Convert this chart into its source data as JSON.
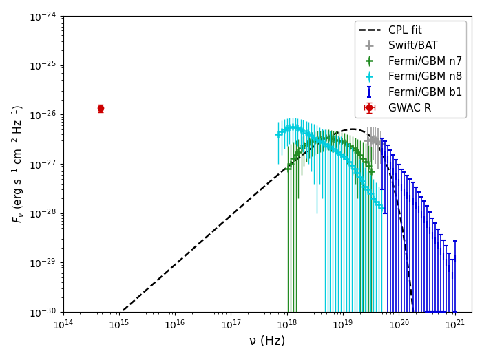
{
  "xlabel": "ν (Hz)",
  "ylabel": "$F_{\\nu}$ (erg s$^{-1}$ cm$^{-2}$ Hz$^{-1}$)",
  "xlim_log": [
    14.0,
    21.3
  ],
  "ylim_log": [
    -30.0,
    -24.0
  ],
  "cpl_fit": {
    "nu_peak": 7e+18,
    "F_peak": 4e-27,
    "alpha": 1.0,
    "Ec": 1.5e+19,
    "nu_start_log": 14.0,
    "nu_end_log": 21.2,
    "color": "#000000",
    "lw": 1.8,
    "linestyle": "--",
    "label": "CPL fit"
  },
  "gwac_r": {
    "nu": 460000000000000.0,
    "F": 1.35e-26,
    "F_err_up": 2.5e-27,
    "F_err_down": 2.5e-27,
    "nu_err": 30000000000000.0,
    "color": "#cc0000",
    "marker": "o",
    "ms": 6,
    "label": "GWAC R"
  },
  "swift_bat": {
    "nu": [
      2.8e+19,
      3.2e+19,
      3.5e+19,
      3.8e+19,
      4.2e+19,
      4.7e+19
    ],
    "F": [
      3e-27,
      3.1e-27,
      3.2e-27,
      3e-27,
      2.8e-27,
      2.5e-27
    ],
    "F_err_up": [
      2.5e-27,
      2.5e-27,
      2.5e-27,
      2.5e-27,
      2.5e-27,
      2e-27
    ],
    "F_err_down": [
      2e-27,
      2e-27,
      2e-27,
      2e-27,
      2e-27,
      1.5e-27
    ],
    "color": "#999999",
    "marker": "+",
    "ms": 8,
    "mew": 2.0,
    "label": "Swift/BAT"
  },
  "fermi_n7": {
    "nu": [
      1.05e+18,
      1.15e+18,
      1.3e+18,
      1.45e+18,
      1.6e+18,
      1.8e+18,
      2e+18,
      2.2e+18,
      2.5e+18,
      2.8e+18,
      3.1e+18,
      3.5e+18,
      3.9e+18,
      4.4e+18,
      4.9e+18,
      5.5e+18,
      6.1e+18,
      6.8e+18,
      7.6e+18,
      8.5e+18,
      9.5e+18,
      1.06e+19,
      1.18e+19,
      1.32e+19,
      1.47e+19,
      1.64e+19,
      1.83e+19,
      2.05e+19,
      2.28e+19,
      2.55e+19,
      2.85e+19,
      3.18e+19
    ],
    "F": [
      8e-28,
      1e-27,
      1.3e-27,
      1.5e-27,
      1.7e-27,
      2.1e-27,
      2.4e-27,
      2.6e-27,
      2.8e-27,
      2.9e-27,
      3e-27,
      3.1e-27,
      3.2e-27,
      3.3e-27,
      3.4e-27,
      3.4e-27,
      3.3e-27,
      3.2e-27,
      3.1e-27,
      3e-27,
      2.9e-27,
      2.7e-27,
      2.5e-27,
      2.3e-27,
      2.1e-27,
      1.9e-27,
      1.7e-27,
      1.5e-27,
      1.3e-27,
      1.1e-27,
      9e-28,
      7e-28
    ],
    "F_err_up": [
      1.5e-27,
      1.5e-27,
      1.5e-27,
      1.5e-27,
      1.5e-27,
      1.5e-27,
      1.5e-27,
      1.5e-27,
      1.5e-27,
      1.5e-27,
      1.5e-27,
      1.5e-27,
      1.5e-27,
      1.5e-27,
      1.5e-27,
      1.5e-27,
      1.5e-27,
      1.5e-27,
      1.5e-27,
      1.5e-27,
      1.5e-27,
      1.5e-27,
      1.5e-27,
      1.5e-27,
      1.5e-27,
      1.5e-27,
      1.5e-27,
      1.5e-27,
      1.5e-27,
      1.5e-27,
      1.5e-27,
      1.5e-27
    ],
    "F_err_down": [
      8e-28,
      1e-27,
      1.3e-27,
      1.5e-27,
      1.5e-27,
      1.5e-27,
      1.5e-27,
      1.5e-27,
      1.5e-27,
      1.5e-27,
      1.5e-27,
      1.5e-27,
      1.5e-27,
      1.5e-27,
      1.5e-27,
      1.5e-27,
      1.5e-27,
      1.5e-27,
      1.5e-27,
      1.5e-27,
      1.5e-27,
      1.5e-27,
      1.5e-27,
      1.5e-27,
      1.5e-27,
      1.5e-27,
      1.5e-27,
      1.5e-27,
      1.5e-27,
      1.5e-27,
      9e-28,
      7e-28
    ],
    "color": "#228B22",
    "marker": "+",
    "ms": 7,
    "mew": 1.8,
    "label": "Fermi/GBM n7"
  },
  "fermi_n8": {
    "nu": [
      7e+17,
      8e+17,
      9e+17,
      1e+18,
      1.1e+18,
      1.25e+18,
      1.4e+18,
      1.55e+18,
      1.75e+18,
      1.95e+18,
      2.2e+18,
      2.45e+18,
      2.75e+18,
      3.05e+18,
      3.4e+18,
      3.8e+18,
      4.25e+18,
      4.75e+18,
      5.3e+18,
      5.9e+18,
      6.6e+18,
      7.4e+18,
      8.2e+18,
      9.2e+18,
      1.03e+19,
      1.15e+19,
      1.28e+19,
      1.43e+19,
      1.6e+19,
      1.78e+19,
      1.99e+19,
      2.22e+19,
      2.48e+19,
      2.77e+19,
      3.1e+19,
      3.46e+19,
      3.86e+19,
      4.31e+19,
      4.82e+19
    ],
    "F": [
      4e-27,
      4.5e-27,
      5e-27,
      5.3e-27,
      5.5e-27,
      5.6e-27,
      5.5e-27,
      5.3e-27,
      5e-27,
      4.7e-27,
      4.3e-27,
      4e-27,
      3.7e-27,
      3.4e-27,
      3.1e-27,
      2.9e-27,
      2.7e-27,
      2.5e-27,
      2.3e-27,
      2.2e-27,
      2e-27,
      1.85e-27,
      1.7e-27,
      1.55e-27,
      1.4e-27,
      1.25e-27,
      1.1e-27,
      9.5e-28,
      8e-28,
      6.5e-28,
      5.5e-28,
      4.5e-28,
      3.5e-28,
      3e-28,
      2.5e-28,
      2e-28,
      1.7e-28,
      1.5e-28,
      1.3e-28
    ],
    "F_err_up": [
      3e-27,
      3e-27,
      3e-27,
      3e-27,
      3e-27,
      3e-27,
      3e-27,
      3e-27,
      3e-27,
      3e-27,
      3e-27,
      3e-27,
      3e-27,
      3e-27,
      3e-27,
      2.5e-27,
      2.5e-27,
      2.5e-27,
      2.5e-27,
      2.5e-27,
      2e-27,
      2e-27,
      2e-27,
      2e-27,
      1.8e-27,
      1.5e-27,
      1.5e-27,
      1.2e-27,
      1e-27,
      8e-28,
      7e-28,
      6e-28,
      5e-28,
      4e-28,
      3.5e-28,
      3e-28,
      2.5e-28,
      2e-28,
      1.8e-28
    ],
    "F_err_down": [
      3e-27,
      3e-27,
      3e-27,
      3e-27,
      3e-27,
      3e-27,
      3e-27,
      3e-27,
      3e-27,
      3e-27,
      3e-27,
      3e-27,
      3e-27,
      3e-27,
      3e-27,
      2.5e-27,
      2.5e-27,
      2.5e-27,
      2.5e-27,
      2.5e-27,
      2e-27,
      2e-27,
      2e-27,
      2e-27,
      1.8e-27,
      1.5e-27,
      1.5e-27,
      1.2e-27,
      1e-27,
      8e-28,
      7e-28,
      6e-28,
      5e-28,
      4e-28,
      3.5e-28,
      3e-28,
      2.5e-28,
      2e-28,
      1.8e-28
    ],
    "color": "#00ccdd",
    "marker": "+",
    "ms": 7,
    "mew": 1.8,
    "label": "Fermi/GBM n8"
  },
  "fermi_b1": {
    "nu": [
      5e+19,
      5.6e+19,
      6.3e+19,
      7e+19,
      7.9e+19,
      8.9e+19,
      1e+20,
      1.12e+20,
      1.26e+20,
      1.41e+20,
      1.58e+20,
      1.78e+20,
      2e+20,
      2.24e+20,
      2.51e+20,
      2.82e+20,
      3.16e+20,
      3.55e+20,
      3.98e+20,
      4.47e+20,
      5.01e+20,
      5.62e+20,
      6.31e+20,
      7.08e+20,
      7.94e+20,
      8.91e+20,
      1e+21
    ],
    "F": [
      1.8e-27,
      1.5e-27,
      1.2e-27,
      9e-28,
      7e-28,
      5.5e-28,
      4.2e-28,
      3.3e-28,
      2.7e-28,
      2.3e-28,
      2e-28,
      1.7e-28,
      1.4e-28,
      1.2e-28,
      9.5e-29,
      7.5e-29,
      6e-29,
      4.5e-29,
      3.5e-29,
      2.8e-29,
      2.2e-29,
      1.7e-29,
      1.3e-29,
      1e-29,
      7.5e-30,
      5.5e-30,
      1.2e-29
    ],
    "F_err_up": [
      1.5e-27,
      1.4e-27,
      1.2e-27,
      1e-27,
      8e-28,
      6.5e-28,
      5.5e-28,
      4.5e-28,
      4e-28,
      3.5e-28,
      3e-28,
      2.5e-28,
      2e-28,
      1.5e-28,
      1.2e-28,
      1e-28,
      8e-29,
      6e-29,
      4.5e-29,
      3.5e-29,
      2.5e-29,
      2e-29,
      1.5e-29,
      1.2e-29,
      8e-30,
      6e-30,
      1.5e-29
    ],
    "F_err_down": [
      1.5e-27,
      1.4e-27,
      1.2e-27,
      1e-27,
      7e-28,
      5.5e-28,
      4.2e-28,
      3.3e-28,
      2.7e-28,
      2.3e-28,
      2e-28,
      1.7e-28,
      1.4e-28,
      1.2e-28,
      9.5e-29,
      7.5e-29,
      5.9e-29,
      4.4e-29,
      3.4e-29,
      2.7e-29,
      2.1e-29,
      1.6e-29,
      1.2e-29,
      9.9e-30,
      7.4e-30,
      5.4e-30,
      1.1e-29
    ],
    "color": "#0000dd",
    "marker": "|",
    "ms": 7,
    "mew": 1.5,
    "label": "Fermi/GBM b1"
  },
  "legend": {
    "loc": "upper right",
    "fontsize": 11,
    "frameon": true,
    "framealpha": 1.0,
    "edgecolor": "#bbbbbb"
  }
}
